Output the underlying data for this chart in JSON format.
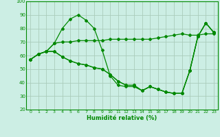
{
  "xlabel": "Humidité relative (%)",
  "bg_color": "#cceee4",
  "grid_color": "#aaccbb",
  "line_color": "#008800",
  "xlim": [
    -0.5,
    23.5
  ],
  "ylim": [
    20,
    100
  ],
  "yticks": [
    20,
    30,
    40,
    50,
    60,
    70,
    80,
    90,
    100
  ],
  "xticks": [
    0,
    1,
    2,
    3,
    4,
    5,
    6,
    7,
    8,
    9,
    10,
    11,
    12,
    13,
    14,
    15,
    16,
    17,
    18,
    19,
    20,
    21,
    22,
    23
  ],
  "series": [
    [
      57,
      61,
      63,
      69,
      70,
      70,
      71,
      71,
      71,
      71,
      72,
      72,
      72,
      72,
      72,
      72,
      73,
      74,
      75,
      76,
      75,
      75,
      76,
      76
    ],
    [
      57,
      61,
      63,
      63,
      59,
      56,
      54,
      53,
      51,
      50,
      46,
      41,
      38,
      38,
      34,
      37,
      35,
      33,
      32,
      32,
      49,
      74,
      84,
      77
    ],
    [
      57,
      61,
      63,
      63,
      59,
      56,
      54,
      53,
      51,
      50,
      46,
      41,
      38,
      38,
      34,
      37,
      35,
      33,
      32,
      32,
      49,
      74,
      84,
      77
    ],
    [
      57,
      61,
      63,
      69,
      80,
      87,
      90,
      86,
      80,
      64,
      45,
      38,
      37,
      37,
      34,
      37,
      35,
      33,
      32,
      32,
      49,
      74,
      84,
      77
    ]
  ]
}
